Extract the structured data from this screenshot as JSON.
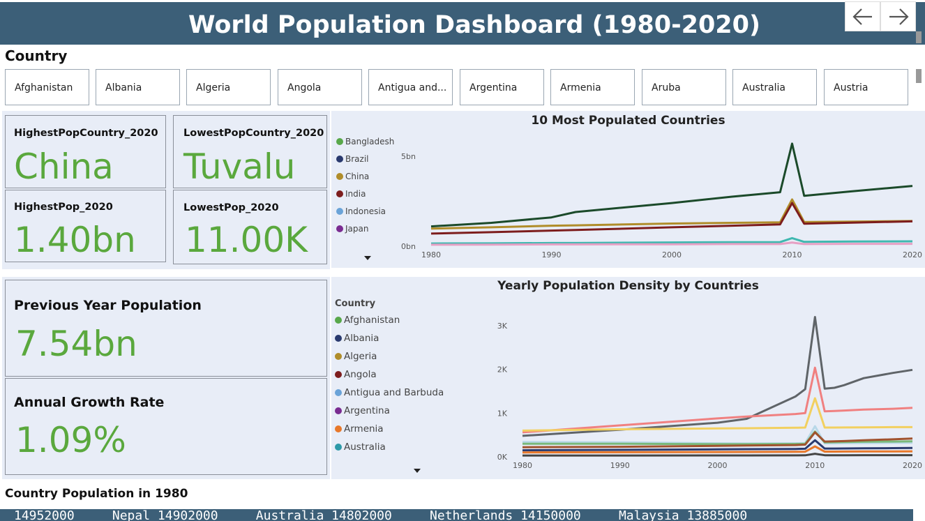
{
  "header": {
    "title": "World Population Dashboard (1980-2020)"
  },
  "nav": {
    "back_icon": "arrow-left-icon",
    "forward_icon": "arrow-right-icon"
  },
  "country_slicer": {
    "title": "Country",
    "items": [
      "Afghanistan",
      "Albania",
      "Algeria",
      "Angola",
      "Antigua and...",
      "Argentina",
      "Armenia",
      "Aruba",
      "Australia",
      "Austria"
    ]
  },
  "kpis": {
    "highest_country": {
      "label": "HighestPopCountry_2020",
      "value": "China"
    },
    "lowest_country": {
      "label": "LowestPopCountry_2020",
      "value": "Tuvalu"
    },
    "highest_pop": {
      "label": "HighestPop_2020",
      "value": "1.40bn"
    },
    "lowest_pop": {
      "label": "LowestPop_2020",
      "value": "11.00K"
    },
    "prev_year_pop": {
      "label": "Previous Year Population",
      "value": "7.54bn"
    },
    "growth_rate": {
      "label": "Annual Growth Rate",
      "value": "1.09%"
    }
  },
  "chart_data": [
    {
      "type": "line",
      "title": "10 Most Populated Countries",
      "x_ticks": [
        "1980",
        "1990",
        "2000",
        "2010",
        "2020"
      ],
      "y_ticks": [
        "0bn",
        "5bn"
      ],
      "legend": [
        {
          "name": "Bangladesh",
          "color": "#59a84a"
        },
        {
          "name": "Brazil",
          "color": "#2a3a6e"
        },
        {
          "name": "China",
          "color": "#b08d2a"
        },
        {
          "name": "India",
          "color": "#7d1d1d"
        },
        {
          "name": "Indonesia",
          "color": "#6aa3d8"
        },
        {
          "name": "Japan",
          "color": "#7a2c91"
        }
      ],
      "x": [
        1980,
        1985,
        1990,
        1992,
        2000,
        2005,
        2009,
        2010,
        2011,
        2015,
        2020
      ],
      "series": [
        {
          "color": "#1b4a2a",
          "values": [
            1.1,
            1.3,
            1.6,
            1.9,
            2.4,
            2.75,
            3.0,
            5.7,
            2.8,
            3.05,
            3.35
          ]
        },
        {
          "color": "#b08d2a",
          "values": [
            0.98,
            1.05,
            1.14,
            1.16,
            1.26,
            1.3,
            1.33,
            2.6,
            1.34,
            1.37,
            1.4
          ]
        },
        {
          "color": "#7d1d1d",
          "values": [
            0.7,
            0.78,
            0.87,
            0.9,
            1.05,
            1.14,
            1.21,
            2.4,
            1.25,
            1.31,
            1.38
          ]
        },
        {
          "color": "#3fb8b0",
          "values": [
            0.15,
            0.16,
            0.18,
            0.18,
            0.21,
            0.22,
            0.23,
            0.45,
            0.24,
            0.26,
            0.27
          ]
        },
        {
          "color": "#e6a0c4",
          "values": [
            0.08,
            0.09,
            0.1,
            0.1,
            0.11,
            0.12,
            0.12,
            0.2,
            0.12,
            0.13,
            0.13
          ]
        }
      ]
    },
    {
      "type": "line",
      "title": "Yearly Population Density by Countries",
      "legend_title": "Country",
      "x_ticks": [
        "1980",
        "1990",
        "2000",
        "2010",
        "2020"
      ],
      "y_ticks": [
        "0K",
        "1K",
        "2K",
        "3K"
      ],
      "legend": [
        {
          "name": "Afghanistan",
          "color": "#59a84a"
        },
        {
          "name": "Albania",
          "color": "#2a3a6e"
        },
        {
          "name": "Algeria",
          "color": "#b08d2a"
        },
        {
          "name": "Angola",
          "color": "#7d1d1d"
        },
        {
          "name": "Antigua and Barbuda",
          "color": "#6aa3d8"
        },
        {
          "name": "Argentina",
          "color": "#7a2c91"
        },
        {
          "name": "Armenia",
          "color": "#e8782a"
        },
        {
          "name": "Australia",
          "color": "#2e9aa8"
        }
      ],
      "x": [
        1980,
        1990,
        2000,
        2003,
        2008,
        2009,
        2010,
        2011,
        2012,
        2013,
        2015,
        2018,
        2020
      ],
      "series": [
        {
          "color": "#5f6468",
          "values": [
            480,
            620,
            780,
            870,
            1380,
            1550,
            3200,
            1560,
            1580,
            1640,
            1800,
            1920,
            1990
          ]
        },
        {
          "color": "#f08080",
          "values": [
            560,
            720,
            880,
            920,
            980,
            1000,
            2040,
            1040,
            1050,
            1060,
            1080,
            1100,
            1120
          ]
        },
        {
          "color": "#f2d060",
          "values": [
            600,
            630,
            650,
            655,
            665,
            670,
            1340,
            670,
            670,
            672,
            675,
            680,
            680
          ]
        },
        {
          "color": "#b8d8e8",
          "values": [
            340,
            330,
            310,
            305,
            310,
            315,
            700,
            310,
            310,
            312,
            315,
            320,
            320
          ]
        },
        {
          "color": "#7ab87a",
          "values": [
            300,
            300,
            290,
            290,
            295,
            300,
            580,
            330,
            335,
            340,
            345,
            350,
            355
          ]
        },
        {
          "color": "#a0522d",
          "values": [
            220,
            230,
            250,
            260,
            270,
            280,
            560,
            350,
            355,
            360,
            380,
            400,
            420
          ]
        },
        {
          "color": "#2a3a6e",
          "values": [
            150,
            160,
            170,
            175,
            180,
            185,
            380,
            190,
            190,
            192,
            195,
            200,
            205
          ]
        },
        {
          "color": "#e8782a",
          "values": [
            100,
            105,
            110,
            112,
            115,
            118,
            240,
            120,
            120,
            122,
            124,
            125,
            126
          ]
        },
        {
          "color": "#444444",
          "values": [
            30,
            30,
            32,
            32,
            34,
            35,
            70,
            36,
            36,
            37,
            38,
            38,
            39
          ]
        }
      ]
    }
  ],
  "ticker": {
    "title": "Country Population in 1980",
    "text": "14952000     Nepal 14902000     Australia 14802000     Netherlands 14150000     Malaysia 13885000"
  }
}
